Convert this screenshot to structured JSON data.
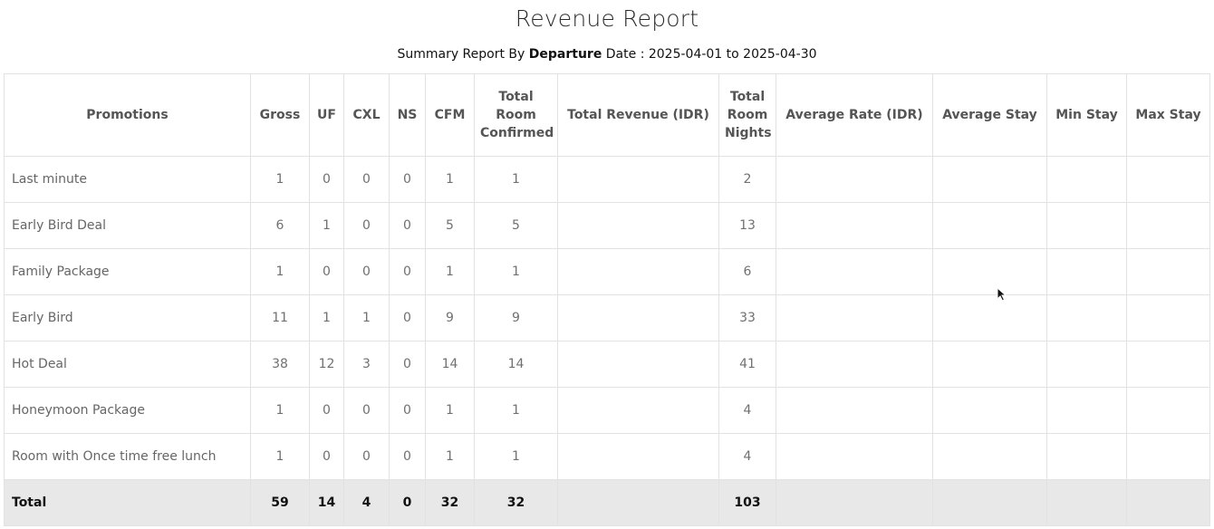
{
  "report": {
    "title": "Revenue Report",
    "subtitle_prefix": "Summary Report By ",
    "subtitle_strong": "Departure",
    "subtitle_suffix": " Date : 2025-04-01 to 2025-04-30"
  },
  "table": {
    "headers": {
      "promotions": "Promotions",
      "gross": "Gross",
      "uf": "UF",
      "cxl": "CXL",
      "ns": "NS",
      "cfm": "CFM",
      "total_room_confirmed": "Total Room Confirmed",
      "total_revenue": "Total Revenue (IDR)",
      "total_room_nights": "Total Room Nights",
      "average_rate": "Average Rate (IDR)",
      "average_stay": "Average Stay",
      "min_stay": "Min Stay",
      "max_stay": "Max Stay"
    },
    "rows": [
      {
        "name": "Last minute",
        "gross": "1",
        "uf": "0",
        "cxl": "0",
        "ns": "0",
        "cfm": "1",
        "total_room_confirmed": "1",
        "total_revenue": "",
        "total_room_nights": "2",
        "average_rate": "",
        "average_stay": "",
        "min_stay": "",
        "max_stay": ""
      },
      {
        "name": "Early Bird Deal",
        "gross": "6",
        "uf": "1",
        "cxl": "0",
        "ns": "0",
        "cfm": "5",
        "total_room_confirmed": "5",
        "total_revenue": "",
        "total_room_nights": "13",
        "average_rate": "",
        "average_stay": "",
        "min_stay": "",
        "max_stay": ""
      },
      {
        "name": "Family Package",
        "gross": "1",
        "uf": "0",
        "cxl": "0",
        "ns": "0",
        "cfm": "1",
        "total_room_confirmed": "1",
        "total_revenue": "",
        "total_room_nights": "6",
        "average_rate": "",
        "average_stay": "",
        "min_stay": "",
        "max_stay": ""
      },
      {
        "name": "Early Bird",
        "gross": "11",
        "uf": "1",
        "cxl": "1",
        "ns": "0",
        "cfm": "9",
        "total_room_confirmed": "9",
        "total_revenue": "",
        "total_room_nights": "33",
        "average_rate": "",
        "average_stay": "",
        "min_stay": "",
        "max_stay": ""
      },
      {
        "name": "Hot Deal",
        "gross": "38",
        "uf": "12",
        "cxl": "3",
        "ns": "0",
        "cfm": "14",
        "total_room_confirmed": "14",
        "total_revenue": "",
        "total_room_nights": "41",
        "average_rate": "",
        "average_stay": "",
        "min_stay": "",
        "max_stay": ""
      },
      {
        "name": "Honeymoon Package",
        "gross": "1",
        "uf": "0",
        "cxl": "0",
        "ns": "0",
        "cfm": "1",
        "total_room_confirmed": "1",
        "total_revenue": "",
        "total_room_nights": "4",
        "average_rate": "",
        "average_stay": "",
        "min_stay": "",
        "max_stay": ""
      },
      {
        "name": "Room with Once time free lunch",
        "gross": "1",
        "uf": "0",
        "cxl": "0",
        "ns": "0",
        "cfm": "1",
        "total_room_confirmed": "1",
        "total_revenue": "",
        "total_room_nights": "4",
        "average_rate": "",
        "average_stay": "",
        "min_stay": "",
        "max_stay": ""
      }
    ],
    "total": {
      "label": "Total",
      "gross": "59",
      "uf": "14",
      "cxl": "4",
      "ns": "0",
      "cfm": "32",
      "total_room_confirmed": "32",
      "total_revenue": "",
      "total_room_nights": "103",
      "average_rate": "",
      "average_stay": "",
      "min_stay": "",
      "max_stay": ""
    }
  },
  "cursor": {
    "icon": "mouse-pointer-icon"
  }
}
